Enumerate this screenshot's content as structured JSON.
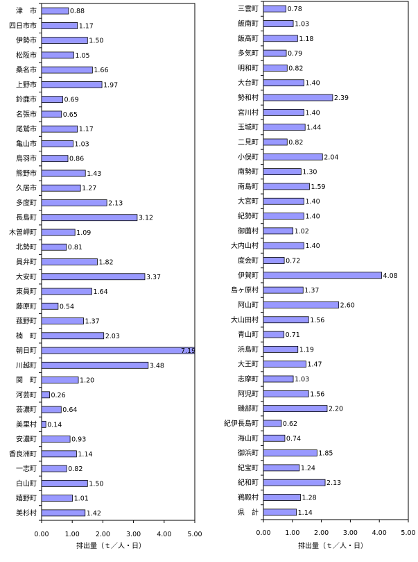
{
  "chart_data": [
    {
      "type": "bar",
      "orientation": "horizontal",
      "xlabel": "排出量（ｔ／人・日）",
      "xlim": [
        0,
        5
      ],
      "xticks": [
        "0.00",
        "1.00",
        "2.00",
        "3.00",
        "4.00",
        "5.00"
      ],
      "grid": false,
      "bar_color": "#9999ff",
      "categories": [
        "津　市",
        "四日市市",
        "伊勢市",
        "松阪市",
        "桑名市",
        "上野市",
        "鈴鹿市",
        "名張市",
        "尾鷲市",
        "亀山市",
        "鳥羽市",
        "熊野市",
        "久居市",
        "多度町",
        "長島町",
        "木曽岬町",
        "北勢町",
        "員弁町",
        "大安町",
        "東員町",
        "藤原町",
        "菰野町",
        "楠　町",
        "朝日町",
        "川越町",
        "関　町",
        "河芸町",
        "芸濃町",
        "美里村",
        "安濃町",
        "香良洲町",
        "一志町",
        "白山町",
        "嬉野町",
        "美杉村"
      ],
      "values": [
        0.88,
        1.17,
        1.5,
        1.05,
        1.66,
        1.97,
        0.69,
        0.65,
        1.17,
        1.03,
        0.86,
        1.43,
        1.27,
        2.13,
        3.12,
        1.09,
        0.81,
        1.82,
        3.37,
        1.64,
        0.54,
        1.37,
        2.03,
        7.19,
        3.48,
        1.2,
        0.26,
        0.64,
        0.14,
        0.93,
        1.14,
        0.82,
        1.5,
        1.01,
        1.42
      ],
      "value_labels": [
        "0.88",
        "1.17",
        "1.50",
        "1.05",
        "1.66",
        "1.97",
        "0.69",
        "0.65",
        "1.17",
        "1.03",
        "0.86",
        "1.43",
        "1.27",
        "2.13",
        "3.12",
        "1.09",
        "0.81",
        "1.82",
        "3.37",
        "1.64",
        "0.54",
        "1.37",
        "2.03",
        "7.19",
        "3.48",
        "1.20",
        "0.26",
        "0.64",
        "0.14",
        "0.93",
        "1.14",
        "0.82",
        "1.50",
        "1.01",
        "1.42"
      ]
    },
    {
      "type": "bar",
      "orientation": "horizontal",
      "xlabel": "排出量（ｔ／人・日）",
      "xlim": [
        0,
        5
      ],
      "xticks": [
        "0.00",
        "1.00",
        "2.00",
        "3.00",
        "4.00",
        "5.00"
      ],
      "grid": false,
      "bar_color": "#9999ff",
      "categories": [
        "三雲町",
        "飯南町",
        "飯高町",
        "多気町",
        "明和町",
        "大台町",
        "勢和村",
        "宮川村",
        "玉城町",
        "二見町",
        "小俣町",
        "南勢町",
        "南島町",
        "大宮町",
        "紀勢町",
        "御薗村",
        "大内山村",
        "度会町",
        "伊賀町",
        "島ヶ原村",
        "阿山町",
        "大山田村",
        "青山町",
        "浜島町",
        "大王町",
        "志摩町",
        "阿児町",
        "磯部町",
        "紀伊長島町",
        "海山町",
        "御浜町",
        "紀宝町",
        "紀和町",
        "鵜殿村",
        "県　計"
      ],
      "values": [
        0.78,
        1.03,
        1.18,
        0.79,
        0.82,
        1.4,
        2.39,
        1.4,
        1.44,
        0.82,
        2.04,
        1.3,
        1.59,
        1.4,
        1.4,
        1.02,
        1.4,
        0.72,
        4.08,
        1.37,
        2.6,
        1.56,
        0.71,
        1.19,
        1.47,
        1.03,
        1.56,
        2.2,
        0.62,
        0.74,
        1.85,
        1.24,
        2.13,
        1.28,
        1.14
      ],
      "value_labels": [
        "0.78",
        "1.03",
        "1.18",
        "0.79",
        "0.82",
        "1.40",
        "2.39",
        "1.40",
        "1.44",
        "0.82",
        "2.04",
        "1.30",
        "1.59",
        "1.40",
        "1.40",
        "1.02",
        "1.40",
        "0.72",
        "4.08",
        "1.37",
        "2.60",
        "1.56",
        "0.71",
        "1.19",
        "1.47",
        "1.03",
        "1.56",
        "2.20",
        "0.62",
        "0.74",
        "1.85",
        "1.24",
        "2.13",
        "1.28",
        "1.14"
      ]
    }
  ]
}
